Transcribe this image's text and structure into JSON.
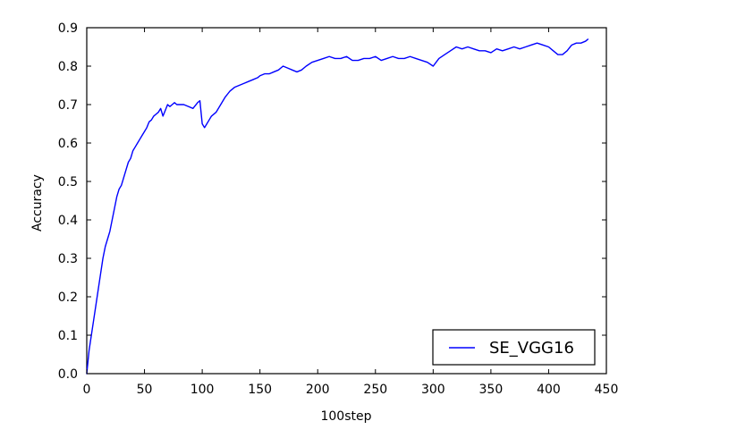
{
  "chart_data": {
    "type": "line",
    "title": "",
    "xlabel": "100step",
    "ylabel": "Accuracy",
    "xlim": [
      0,
      450
    ],
    "ylim": [
      0.0,
      0.9
    ],
    "grid": false,
    "legend_position": "bottom-right",
    "x_ticks": [
      "0",
      "50",
      "100",
      "150",
      "200",
      "250",
      "300",
      "350",
      "400",
      "450"
    ],
    "y_ticks": [
      "0.0",
      "0.1",
      "0.2",
      "0.3",
      "0.4",
      "0.5",
      "0.6",
      "0.7",
      "0.8",
      "0.9"
    ],
    "series": [
      {
        "name": "SE_VGG16",
        "color": "#0000ff",
        "x": [
          0,
          1,
          2,
          3,
          4,
          6,
          8,
          10,
          12,
          14,
          16,
          18,
          20,
          22,
          24,
          26,
          28,
          30,
          32,
          34,
          36,
          38,
          40,
          42,
          44,
          46,
          48,
          50,
          52,
          54,
          56,
          58,
          60,
          62,
          64,
          66,
          68,
          70,
          72,
          74,
          76,
          78,
          80,
          84,
          88,
          92,
          96,
          98,
          100,
          102,
          104,
          106,
          108,
          112,
          116,
          120,
          124,
          128,
          132,
          136,
          140,
          144,
          148,
          150,
          154,
          158,
          162,
          166,
          170,
          174,
          178,
          182,
          186,
          190,
          195,
          200,
          205,
          210,
          215,
          220,
          225,
          230,
          235,
          240,
          245,
          250,
          255,
          260,
          265,
          270,
          275,
          280,
          285,
          290,
          295,
          300,
          305,
          310,
          315,
          320,
          325,
          330,
          335,
          340,
          345,
          350,
          355,
          360,
          365,
          370,
          375,
          380,
          385,
          390,
          395,
          400,
          404,
          408,
          412,
          416,
          420,
          424,
          428,
          432,
          434
        ],
        "values": [
          0.0,
          0.03,
          0.06,
          0.08,
          0.1,
          0.14,
          0.18,
          0.22,
          0.26,
          0.3,
          0.33,
          0.35,
          0.37,
          0.4,
          0.43,
          0.46,
          0.48,
          0.49,
          0.51,
          0.53,
          0.55,
          0.56,
          0.58,
          0.59,
          0.6,
          0.61,
          0.62,
          0.63,
          0.64,
          0.655,
          0.66,
          0.67,
          0.675,
          0.68,
          0.69,
          0.67,
          0.685,
          0.7,
          0.695,
          0.7,
          0.705,
          0.7,
          0.7,
          0.7,
          0.695,
          0.69,
          0.705,
          0.71,
          0.65,
          0.64,
          0.65,
          0.66,
          0.67,
          0.68,
          0.7,
          0.72,
          0.735,
          0.745,
          0.75,
          0.755,
          0.76,
          0.765,
          0.77,
          0.775,
          0.78,
          0.78,
          0.785,
          0.79,
          0.8,
          0.795,
          0.79,
          0.785,
          0.79,
          0.8,
          0.81,
          0.815,
          0.82,
          0.825,
          0.82,
          0.82,
          0.825,
          0.815,
          0.815,
          0.82,
          0.82,
          0.825,
          0.815,
          0.82,
          0.825,
          0.82,
          0.82,
          0.825,
          0.82,
          0.815,
          0.81,
          0.8,
          0.82,
          0.83,
          0.84,
          0.85,
          0.845,
          0.85,
          0.845,
          0.84,
          0.84,
          0.835,
          0.845,
          0.84,
          0.845,
          0.85,
          0.845,
          0.85,
          0.855,
          0.86,
          0.855,
          0.85,
          0.84,
          0.83,
          0.83,
          0.84,
          0.855,
          0.86,
          0.86,
          0.865,
          0.87
        ]
      }
    ]
  }
}
